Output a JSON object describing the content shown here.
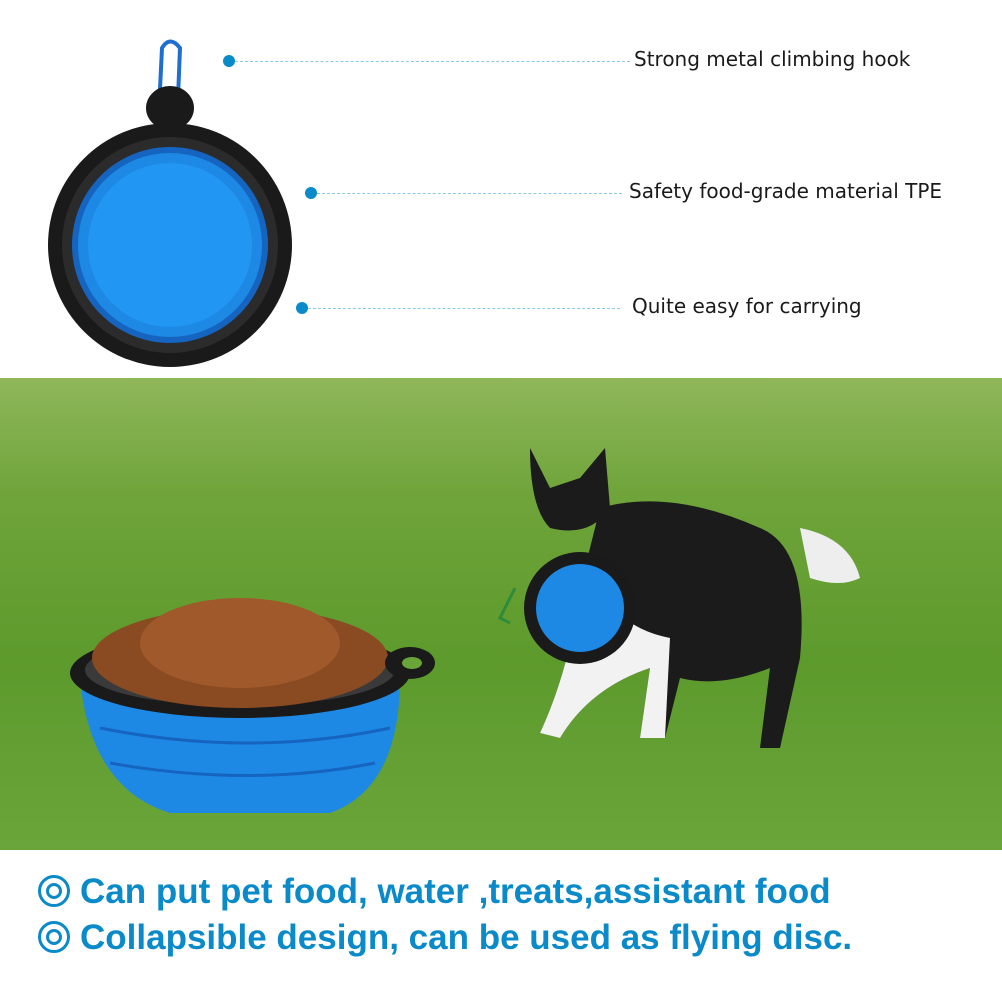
{
  "callouts": [
    {
      "label": "Strong metal climbing hook"
    },
    {
      "label": "Safety food-grade material TPE"
    },
    {
      "label": "Quite easy for carrying"
    }
  ],
  "features": [
    {
      "text": "Can put pet food, water ,treats,assistant food"
    },
    {
      "text": "Collapsible design, can be used as flying disc."
    }
  ],
  "colors": {
    "accent": "#0a8ac8",
    "bowl_blue": "#1e88e5",
    "rim_black": "#1a1a1a",
    "grass": "#6aa53a"
  }
}
